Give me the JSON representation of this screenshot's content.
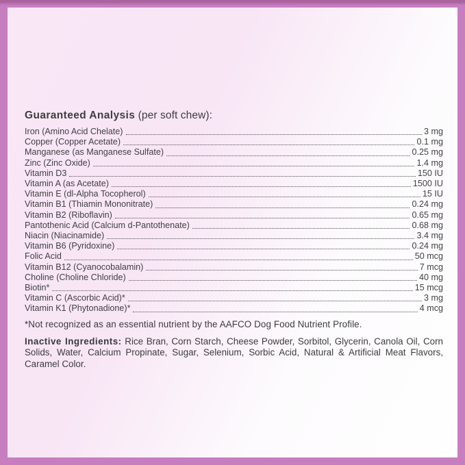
{
  "colors": {
    "frame_border": "#c77ec0",
    "frame_border_top_edge": "#aa639e",
    "background_pink": "#f9e7f6",
    "background_white": "#ffffff",
    "text": "#414042"
  },
  "analysis": {
    "title_bold": "Guaranteed Analysis",
    "title_rest": " (per soft chew):",
    "rows": [
      {
        "label": "Iron (Amino Acid Chelate)",
        "value": "3 mg"
      },
      {
        "label": "Copper (Copper Acetate)",
        "value": "0.1 mg"
      },
      {
        "label": "Manganese (as Manganese Sulfate)",
        "value": "0.25 mg"
      },
      {
        "label": "Zinc  (Zinc  Oxide)",
        "value": "1.4  mg"
      },
      {
        "label": "Vitamin D3",
        "value": "150 IU"
      },
      {
        "label": "Vitamin A (as Acetate)",
        "value": "1500 IU"
      },
      {
        "label": "Vitamin E (dl-Alpha Tocopherol)",
        "value": "15 IU"
      },
      {
        "label": "Vitamin B1 (Thiamin Mononitrate)",
        "value": "0.24 mg"
      },
      {
        "label": "Vitamin B2 (Riboflavin)",
        "value": "0.65 mg"
      },
      {
        "label": "Pantothenic Acid (Calcium d-Pantothenate)",
        "value": "0.68 mg"
      },
      {
        "label": "Niacin (Niacinamide)",
        "value": "3.4 mg"
      },
      {
        "label": "Vitamin B6 (Pyridoxine)",
        "value": "0.24 mg"
      },
      {
        "label": "Folic Acid",
        "value": "50 mcg"
      },
      {
        "label": "Vitamin B12 (Cyanocobalamin)",
        "value": "7 mcg"
      },
      {
        "label": "Choline (Choline Chloride)",
        "value": "40 mg"
      },
      {
        "label": "Biotin*",
        "value": "15 mcg"
      },
      {
        "label": "Vitamin C (Ascorbic Acid)*",
        "value": "3 mg"
      },
      {
        "label": "Vitamin K1 (Phytonadione)*",
        "value": "4 mcg"
      }
    ],
    "footnote": "*Not recognized as an essential nutrient by the AAFCO Dog Food Nutrient Profile."
  },
  "inactive": {
    "heading": "Inactive Ingredients:",
    "text": " Rice Bran, Corn Starch, Cheese Powder, Sorbitol, Glycerin, Canola Oil, Corn Solids, Water, Calcium Propinate, Sugar, Selenium, Sorbic Acid, Natural & Artificial Meat Flavors, Caramel Color."
  }
}
